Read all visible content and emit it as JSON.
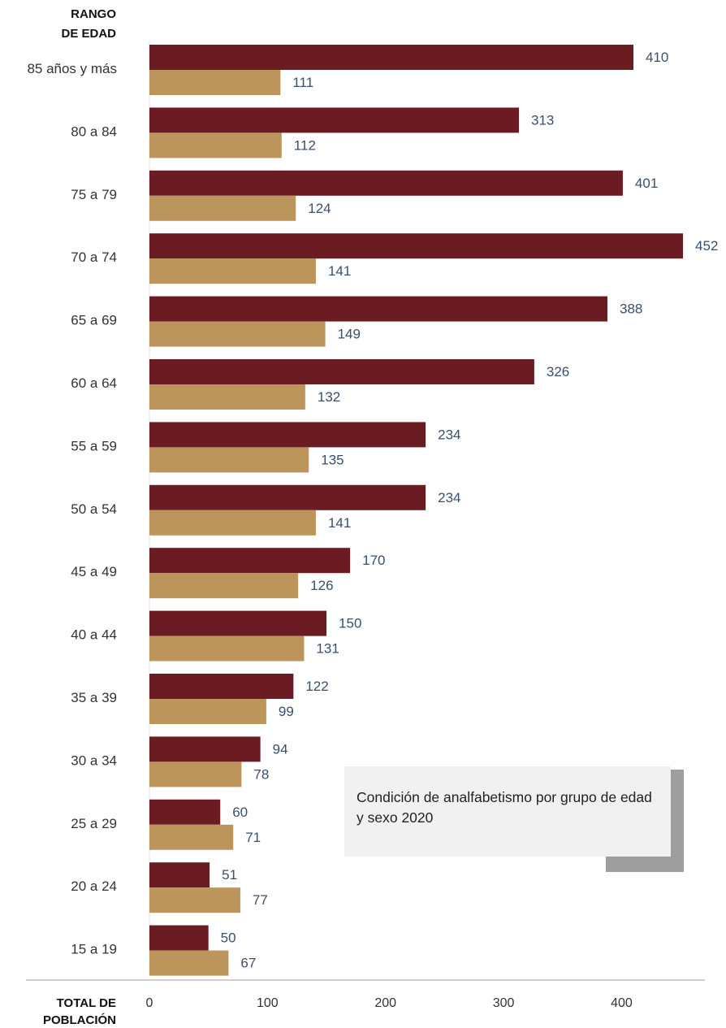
{
  "chart_data": {
    "type": "bar",
    "orientation": "horizontal",
    "ylabel": "RANGO DE EDAD",
    "xlabel": "TOTAL DE POBLACIÓN",
    "categories": [
      "85 años y más",
      "80 a 84",
      "75 a 79",
      "70 a 74",
      "65 a 69",
      "60 a 64",
      "55 a 59",
      "50 a 54",
      "45 a 49",
      "40 a 44",
      "35 a 39",
      "30 a 34",
      "25 a 29",
      "20 a 24",
      "15 a 19"
    ],
    "series": [
      {
        "values": [
          410,
          313,
          401,
          452,
          388,
          326,
          234,
          234,
          170,
          150,
          122,
          94,
          60,
          51,
          50
        ],
        "color": "#6b1c23"
      },
      {
        "values": [
          111,
          112,
          124,
          141,
          149,
          132,
          135,
          141,
          126,
          131,
          99,
          78,
          71,
          77,
          67
        ],
        "color": "#bc955c"
      }
    ],
    "xlim": [
      0,
      452
    ],
    "xticks": [
      0,
      100,
      200,
      300,
      400
    ],
    "grid": false,
    "legend": "none",
    "annotation": "Condición de analfabetismo por grupo de edad y sexo 2020"
  }
}
